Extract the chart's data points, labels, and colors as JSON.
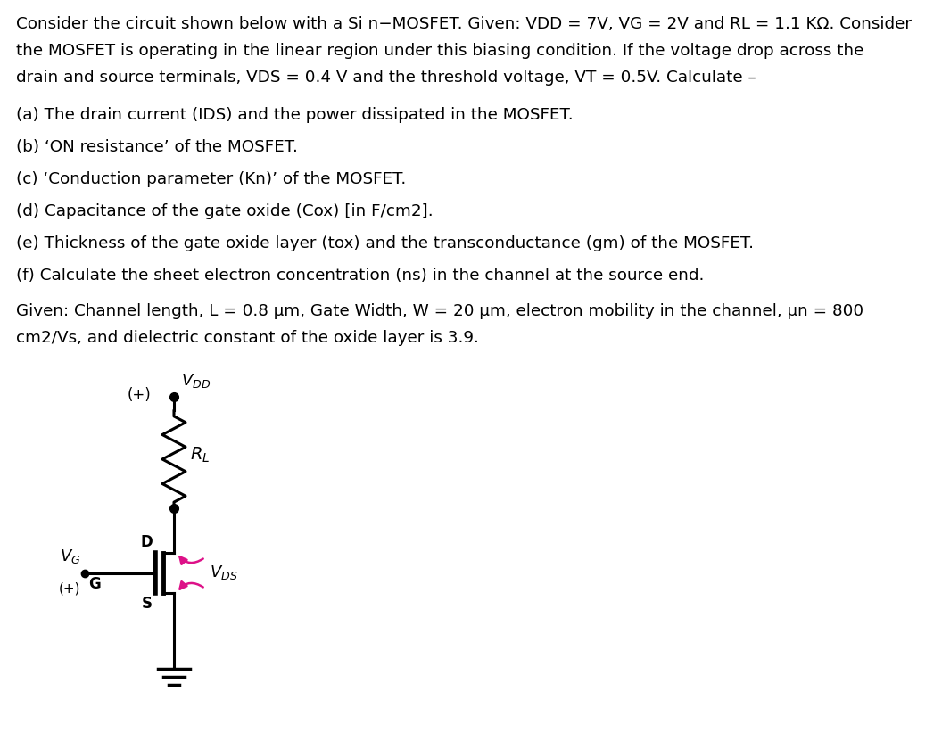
{
  "background_color": "#ffffff",
  "text_line1": "Consider the circuit shown below with a Si n−MOSFET. Given: VDD = 7V, VG = 2V and RL = 1.1 KΩ. Consider",
  "text_line2": "the MOSFET is operating in the linear region under this biasing condition. If the voltage drop across the",
  "text_line3": "drain and source terminals, VDS = 0.4 V and the threshold voltage, VT = 0.5V. Calculate –",
  "item_a": "(a) The drain current (IDS) and the power dissipated in the MOSFET.",
  "item_b": "(b) ‘ON resistance’ of the MOSFET.",
  "item_c": "(c) ‘Conduction parameter (Kn)’ of the MOSFET.",
  "item_d": "(d) Capacitance of the gate oxide (Cox) [in F/cm2].",
  "item_e": "(e) Thickness of the gate oxide layer (tox) and the transconductance (gm) of the MOSFET.",
  "item_f": "(f) Calculate the sheet electron concentration (ns) in the channel at the source end.",
  "given_line1": "Given: Channel length, L = 0.8 μm, Gate Width, W = 20 μm, electron mobility in the channel, μn = 800",
  "given_line2": "cm2/Vs, and dielectric constant of the oxide layer is 3.9.",
  "font_size": 13.2,
  "magenta_color": "#dd1188"
}
